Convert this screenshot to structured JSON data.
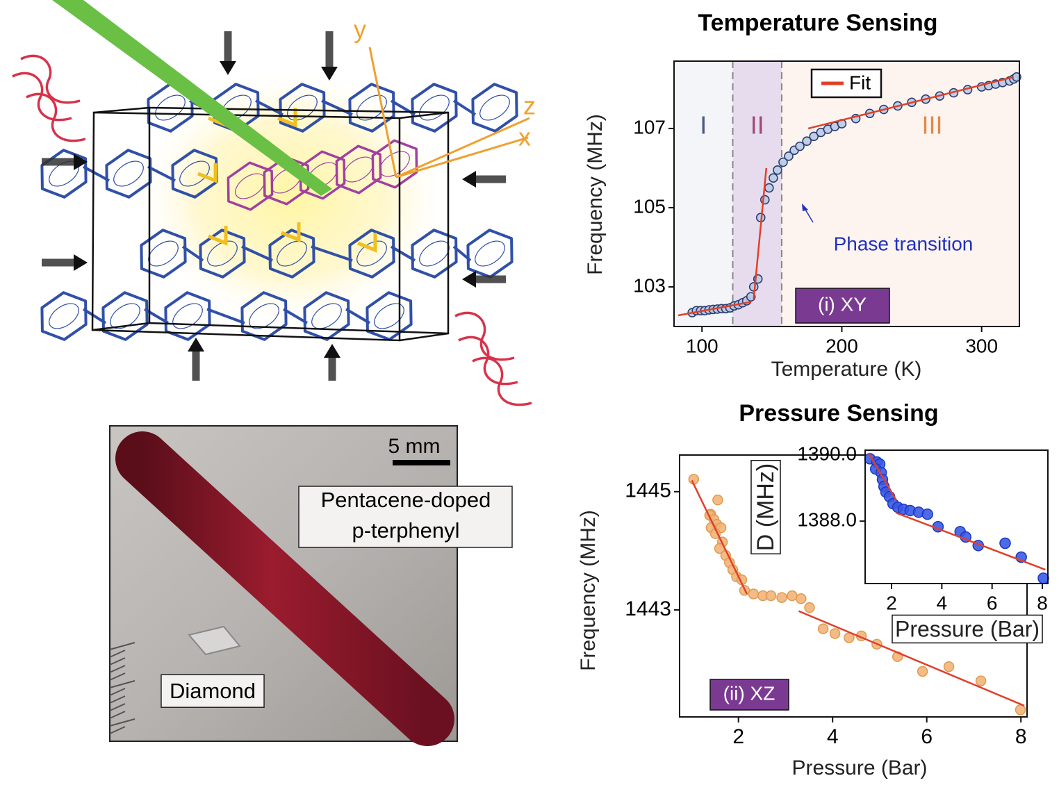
{
  "diagram": {
    "axes": [
      "y",
      "z",
      "x"
    ]
  },
  "photo": {
    "scale_bar": "5 mm",
    "crystal_label": [
      "Pentacene-doped",
      "p-terphenyl"
    ],
    "diamond_label": "Diamond"
  },
  "chart_data": [
    {
      "type": "scatter",
      "title": "Temperature Sensing",
      "xlabel": "Temperature (K)",
      "ylabel": "Frequency (MHz)",
      "xlim": [
        80,
        327
      ],
      "ylim": [
        102.0,
        108.7
      ],
      "xticks": [
        100,
        200,
        300
      ],
      "yticks": [
        103,
        105,
        107
      ],
      "regions": [
        {
          "label": "I",
          "start": 80,
          "end": 122,
          "color": "#f3f5f8",
          "text_color": "#4a5a80"
        },
        {
          "label": "II",
          "start": 122,
          "end": 157,
          "color": "#e6dcee",
          "text_color": "#a0487a"
        },
        {
          "label": "III",
          "start": 157,
          "end": 327,
          "color": "#fdf4ef",
          "text_color": "#e0884a"
        }
      ],
      "x": [
        93,
        96,
        99,
        102,
        105,
        108,
        111,
        114,
        117,
        120,
        123,
        126,
        129,
        132,
        135,
        137,
        140,
        142,
        145,
        148,
        151,
        154,
        158,
        162,
        166,
        170,
        175,
        180,
        185,
        190,
        195,
        200,
        210,
        220,
        230,
        240,
        250,
        260,
        270,
        280,
        290,
        300,
        305,
        310,
        315,
        320,
        323,
        325
      ],
      "values": [
        102.35,
        102.4,
        102.4,
        102.4,
        102.42,
        102.43,
        102.44,
        102.45,
        102.45,
        102.47,
        102.52,
        102.55,
        102.6,
        102.65,
        102.75,
        103.0,
        103.2,
        104.75,
        105.2,
        105.5,
        105.75,
        105.95,
        106.15,
        106.3,
        106.45,
        106.55,
        106.68,
        106.8,
        106.9,
        106.98,
        107.05,
        107.12,
        107.25,
        107.38,
        107.48,
        107.57,
        107.66,
        107.74,
        107.82,
        107.9,
        107.98,
        108.05,
        108.08,
        108.12,
        108.16,
        108.2,
        108.25,
        108.3
      ],
      "color": "#b9cbe6",
      "fit": {
        "name": "Fit",
        "color": "#e0402a",
        "x": [
          83,
          135,
          null,
          137,
          146,
          null,
          176,
          323
        ],
        "values": [
          102.28,
          102.62,
          null,
          102.7,
          106.0,
          null,
          107.0,
          108.3
        ]
      },
      "annotation": "Phase transition",
      "label": "(i)  XY"
    },
    {
      "type": "scatter",
      "title": "Pressure Sensing",
      "xlabel": "Pressure (Bar)",
      "ylabel": "Frequency (MHz)",
      "xlim": [
        0.75,
        8.13
      ],
      "ylim": [
        1441.19,
        1445.62
      ],
      "xticks": [
        2,
        4,
        6,
        8
      ],
      "yticks": [
        1443,
        1445
      ],
      "x": [
        1.05,
        1.41,
        1.56,
        1.39,
        1.48,
        1.54,
        1.63,
        1.42,
        1.51,
        1.66,
        1.6,
        1.73,
        1.81,
        1.88,
        1.96,
        2.07,
        2.13,
        2.32,
        2.52,
        2.69,
        2.92,
        3.14,
        3.33,
        3.51,
        3.8,
        4.05,
        4.35,
        4.61,
        4.94,
        5.38,
        5.91,
        6.47,
        7.15,
        7.99
      ],
      "values": [
        1445.21,
        1444.62,
        1444.86,
        1444.6,
        1444.53,
        1444.45,
        1444.39,
        1444.39,
        1444.29,
        1444.15,
        1444.04,
        1443.92,
        1443.8,
        1443.68,
        1443.56,
        1443.51,
        1443.33,
        1443.27,
        1443.24,
        1443.24,
        1443.21,
        1443.24,
        1443.19,
        1443.04,
        1442.68,
        1442.6,
        1442.53,
        1442.56,
        1442.42,
        1442.21,
        1441.96,
        1442.04,
        1441.8,
        1441.31
      ],
      "color": "#f2b57a",
      "fit": {
        "color": "#e0402a",
        "x": [
          1.01,
          2.18,
          null,
          3.28,
          8.07
        ],
        "values": [
          1445.19,
          1443.27,
          null,
          1442.98,
          1441.38
        ]
      },
      "label": "(ii) XZ"
    },
    {
      "type": "scatter",
      "xlabel": "Pressure (Bar)",
      "ylabel": "D (MHz)",
      "xlim": [
        0.95,
        8.22
      ],
      "ylim": [
        1386.11,
        1390.15
      ],
      "xticks": [
        2,
        4,
        6,
        8
      ],
      "yticks": [
        {
          "value": 1388,
          "label": "1388.0"
        },
        {
          "value": 1390,
          "label": "1390.0"
        }
      ],
      "x": [
        1.14,
        1.42,
        1.53,
        1.37,
        1.59,
        1.64,
        1.7,
        1.78,
        1.92,
        2.06,
        2.25,
        2.47,
        2.74,
        3.08,
        3.43,
        3.85,
        4.73,
        4.95,
        5.45,
        6.52,
        7.16,
        8.04
      ],
      "values": [
        1389.89,
        1389.79,
        1389.73,
        1389.58,
        1389.47,
        1389.26,
        1389.05,
        1388.88,
        1388.74,
        1388.53,
        1388.42,
        1388.36,
        1388.32,
        1388.27,
        1388.21,
        1387.83,
        1387.68,
        1387.52,
        1387.26,
        1387.33,
        1386.91,
        1386.27
      ],
      "color": "#3a5ae6",
      "fit": {
        "color": "#e0402a",
        "x": [
          1.09,
          2.19,
          null,
          2.19,
          8.12
        ],
        "values": [
          1390.06,
          1388.63,
          null,
          1388.25,
          1386.53
        ]
      }
    }
  ]
}
